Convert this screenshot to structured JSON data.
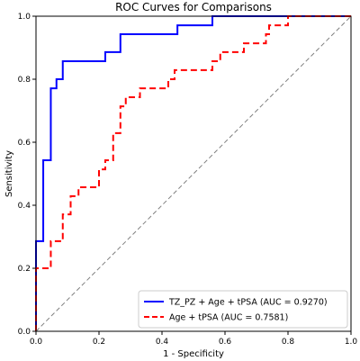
{
  "chart_data": {
    "type": "line",
    "title": "ROC Curves for Comparisons",
    "xlabel": "1 - Specificity",
    "ylabel": "Sensitivity",
    "xlim": [
      0.0,
      1.0
    ],
    "ylim": [
      0.0,
      1.0
    ],
    "xticks": [
      "0.0",
      "0.2",
      "0.4",
      "0.6",
      "0.8",
      "1.0"
    ],
    "yticks": [
      "0.0",
      "0.2",
      "0.4",
      "0.6",
      "0.8",
      "1.0"
    ],
    "grid": false,
    "legend_position": "lower-right",
    "series": [
      {
        "name": "TZ_PZ + Age + tPSA (AUC = 0.9270)",
        "color": "#0000ff",
        "style": "solid",
        "points": [
          [
            0.0,
            0.0
          ],
          [
            0.0,
            0.286
          ],
          [
            0.023,
            0.286
          ],
          [
            0.023,
            0.543
          ],
          [
            0.047,
            0.543
          ],
          [
            0.047,
            0.771
          ],
          [
            0.065,
            0.771
          ],
          [
            0.065,
            0.8
          ],
          [
            0.085,
            0.8
          ],
          [
            0.085,
            0.857
          ],
          [
            0.22,
            0.857
          ],
          [
            0.22,
            0.886
          ],
          [
            0.268,
            0.886
          ],
          [
            0.268,
            0.943
          ],
          [
            0.449,
            0.943
          ],
          [
            0.449,
            0.971
          ],
          [
            0.56,
            0.971
          ],
          [
            0.56,
            1.0
          ],
          [
            1.0,
            1.0
          ]
        ]
      },
      {
        "name": "Age + tPSA (AUC = 0.7581)",
        "color": "#ff0000",
        "style": "dashed",
        "points": [
          [
            0.0,
            0.0
          ],
          [
            0.0,
            0.2
          ],
          [
            0.047,
            0.2
          ],
          [
            0.047,
            0.286
          ],
          [
            0.085,
            0.286
          ],
          [
            0.085,
            0.371
          ],
          [
            0.11,
            0.371
          ],
          [
            0.11,
            0.429
          ],
          [
            0.135,
            0.429
          ],
          [
            0.135,
            0.457
          ],
          [
            0.2,
            0.457
          ],
          [
            0.2,
            0.514
          ],
          [
            0.22,
            0.514
          ],
          [
            0.22,
            0.543
          ],
          [
            0.245,
            0.543
          ],
          [
            0.245,
            0.629
          ],
          [
            0.268,
            0.629
          ],
          [
            0.268,
            0.714
          ],
          [
            0.285,
            0.714
          ],
          [
            0.285,
            0.743
          ],
          [
            0.33,
            0.743
          ],
          [
            0.33,
            0.771
          ],
          [
            0.42,
            0.771
          ],
          [
            0.42,
            0.8
          ],
          [
            0.44,
            0.8
          ],
          [
            0.44,
            0.829
          ],
          [
            0.56,
            0.829
          ],
          [
            0.56,
            0.857
          ],
          [
            0.585,
            0.857
          ],
          [
            0.585,
            0.886
          ],
          [
            0.66,
            0.886
          ],
          [
            0.66,
            0.914
          ],
          [
            0.73,
            0.914
          ],
          [
            0.73,
            0.943
          ],
          [
            0.74,
            0.943
          ],
          [
            0.74,
            0.971
          ],
          [
            0.8,
            0.971
          ],
          [
            0.8,
            1.0
          ],
          [
            1.0,
            1.0
          ]
        ]
      },
      {
        "name": "",
        "color": "#808080",
        "style": "dashed",
        "points": [
          [
            0.0,
            0.0
          ],
          [
            1.0,
            1.0
          ]
        ]
      }
    ]
  }
}
